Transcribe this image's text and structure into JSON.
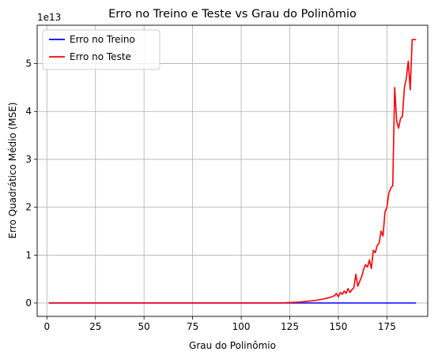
{
  "chart_data": {
    "type": "line",
    "title": "Erro no Treino e Teste vs Grau do Polinômio",
    "xlabel": "Grau do Polinômio",
    "ylabel": "Erro Quadrático Médio (MSE)",
    "y_offset_label": "1e13",
    "y_scale_factor": 10000000000000.0,
    "xlim": [
      -5,
      196
    ],
    "ylim": [
      -0.28,
      5.8
    ],
    "x_ticks": [
      0,
      25,
      50,
      75,
      100,
      125,
      150,
      175
    ],
    "y_ticks": [
      0,
      1,
      2,
      3,
      4,
      5
    ],
    "grid": true,
    "legend_position": "upper-left",
    "series": [
      {
        "name": "Erro no Treino",
        "color": "#0000ff",
        "x": [
          1,
          190
        ],
        "y": [
          0,
          0
        ]
      },
      {
        "name": "Erro no Teste",
        "color": "#ff0000",
        "x": [
          1,
          120,
          125,
          130,
          135,
          138,
          140,
          142,
          144,
          146,
          148,
          149,
          150,
          151,
          152,
          153,
          154,
          155,
          156,
          157,
          158,
          159,
          160,
          161,
          162,
          163,
          164,
          165,
          166,
          167,
          168,
          169,
          170,
          171,
          172,
          173,
          174,
          175,
          176,
          177,
          178,
          179,
          180,
          181,
          182,
          183,
          184,
          185,
          186,
          187,
          188,
          189,
          190
        ],
        "y": [
          0,
          0,
          0.01,
          0.02,
          0.04,
          0.05,
          0.07,
          0.08,
          0.1,
          0.12,
          0.15,
          0.2,
          0.13,
          0.22,
          0.18,
          0.25,
          0.2,
          0.3,
          0.22,
          0.28,
          0.32,
          0.6,
          0.35,
          0.45,
          0.55,
          0.7,
          0.8,
          0.75,
          0.9,
          0.72,
          1.1,
          1.05,
          1.2,
          1.25,
          1.5,
          1.4,
          1.9,
          2.0,
          2.3,
          2.4,
          2.45,
          4.5,
          3.8,
          3.65,
          3.85,
          3.9,
          4.5,
          4.7,
          5.05,
          4.45,
          5.5,
          5.5,
          5.5
        ]
      }
    ]
  }
}
